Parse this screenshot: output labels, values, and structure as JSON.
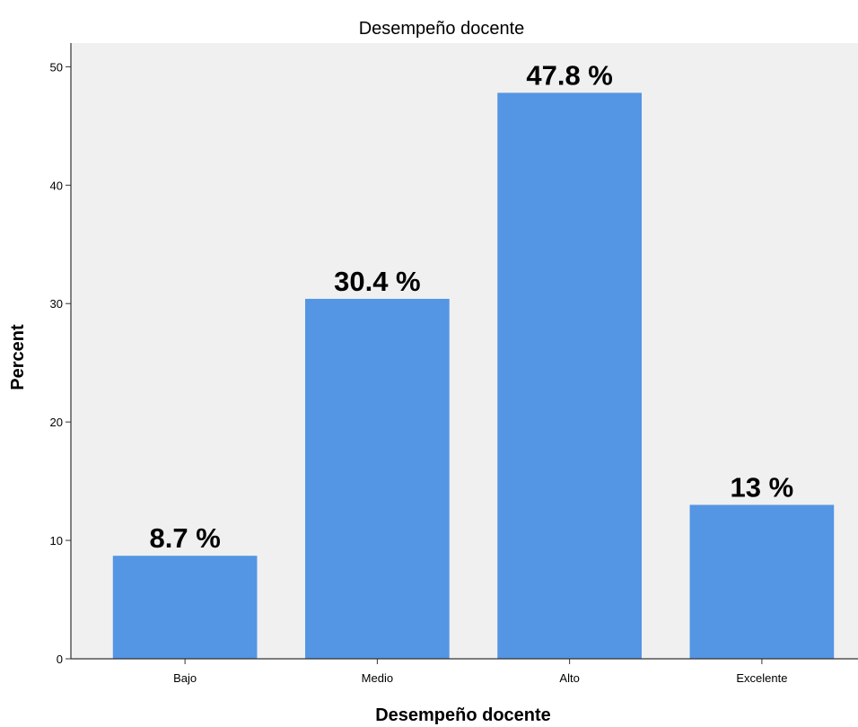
{
  "chart_data": {
    "type": "bar",
    "title": "Desempeño docente",
    "xlabel": "Desempeño docente",
    "ylabel": "Percent",
    "categories": [
      "Bajo",
      "Medio",
      "Alto",
      "Excelente"
    ],
    "values": [
      8.7,
      30.4,
      47.8,
      13
    ],
    "data_labels": [
      "8.7 %",
      "30.4 %",
      "47.8 %",
      "13 %"
    ],
    "ylim": [
      0,
      52
    ],
    "yticks": [
      0,
      10,
      20,
      30,
      40,
      50
    ],
    "grid": false,
    "legend": "none",
    "colors": {
      "bar": "#5495e4",
      "plot_background": "#f0f0f0",
      "axis": "#333333"
    }
  }
}
